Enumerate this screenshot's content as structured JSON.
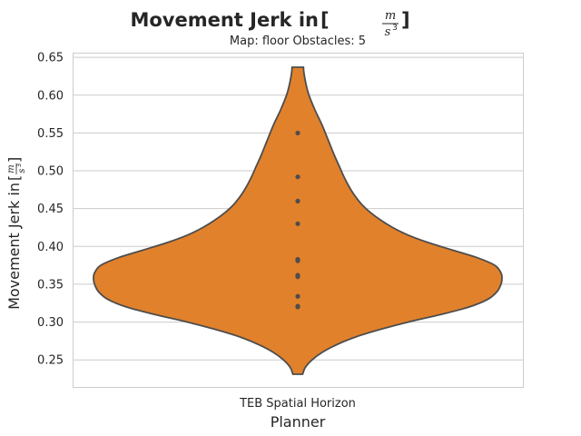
{
  "chart_data": {
    "type": "violin",
    "title": "Movement Jerk in [m/s³]",
    "title_main": "Movement Jerk in",
    "unit_num": "m",
    "unit_den": "s",
    "unit_exp": "3",
    "subtitle": "Map: floor Obstacles: 5",
    "xlabel": "Planner",
    "ylabel_main": "Movement Jerk in",
    "categories": [
      "TEB Spatial Horizon"
    ],
    "ylim": [
      0.213,
      0.655
    ],
    "yticks": [
      0.25,
      0.3,
      0.35,
      0.4,
      0.45,
      0.5,
      0.55,
      0.6,
      0.65
    ],
    "ytick_labels": [
      "0.25",
      "0.30",
      "0.35",
      "0.40",
      "0.45",
      "0.50",
      "0.55",
      "0.60",
      "0.65"
    ],
    "grid": "y",
    "violin_range": [
      0.231,
      0.637
    ],
    "violin_profile": [
      [
        0.231,
        0.024
      ],
      [
        0.24,
        0.037
      ],
      [
        0.25,
        0.07
      ],
      [
        0.26,
        0.12
      ],
      [
        0.27,
        0.19
      ],
      [
        0.28,
        0.28
      ],
      [
        0.29,
        0.4
      ],
      [
        0.3,
        0.54
      ],
      [
        0.31,
        0.7
      ],
      [
        0.32,
        0.84
      ],
      [
        0.33,
        0.93
      ],
      [
        0.34,
        0.975
      ],
      [
        0.35,
        0.995
      ],
      [
        0.358,
        1.0
      ],
      [
        0.365,
        0.995
      ],
      [
        0.375,
        0.965
      ],
      [
        0.385,
        0.88
      ],
      [
        0.395,
        0.76
      ],
      [
        0.405,
        0.64
      ],
      [
        0.415,
        0.54
      ],
      [
        0.425,
        0.465
      ],
      [
        0.435,
        0.405
      ],
      [
        0.445,
        0.355
      ],
      [
        0.455,
        0.315
      ],
      [
        0.465,
        0.285
      ],
      [
        0.475,
        0.26
      ],
      [
        0.49,
        0.23
      ],
      [
        0.505,
        0.205
      ],
      [
        0.52,
        0.18
      ],
      [
        0.54,
        0.15
      ],
      [
        0.56,
        0.12
      ],
      [
        0.58,
        0.085
      ],
      [
        0.6,
        0.055
      ],
      [
        0.615,
        0.04
      ],
      [
        0.63,
        0.03
      ],
      [
        0.637,
        0.028
      ]
    ],
    "points": [
      0.32,
      0.321,
      0.334,
      0.36,
      0.362,
      0.381,
      0.383,
      0.43,
      0.46,
      0.492,
      0.55
    ],
    "colors": {
      "violin_fill": "#e1812c",
      "violin_edge": "#4d4d4d",
      "points": "#4d4d4d",
      "grid": "#cccccc",
      "frame": "#cccccc"
    }
  }
}
